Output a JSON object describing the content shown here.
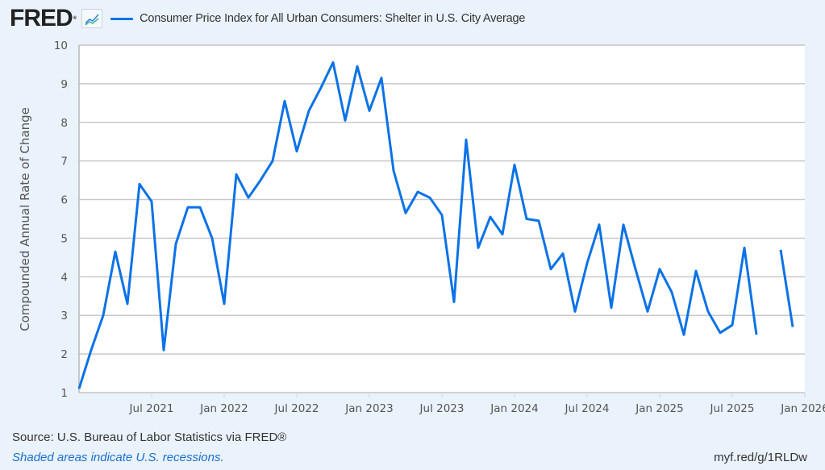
{
  "header": {
    "logo_text": "FRED",
    "logo_mark": "®",
    "graph_icon": "line-chart-icon",
    "legend_label": "Consumer Price Index for All Urban Consumers: Shelter in U.S. City Average",
    "legend_color": "#0b72e7"
  },
  "footer": {
    "source": "Source: U.S. Bureau of Labor Statistics via FRED®",
    "recession_note": "Shaded areas indicate U.S. recessions.",
    "short_link": "myf.red/g/1RLDw"
  },
  "chart_data": {
    "type": "line",
    "title": "Consumer Price Index for All Urban Consumers: Shelter in U.S. City Average",
    "xlabel": "",
    "ylabel": "Compounded Annual Rate of Change",
    "ylim": [
      1,
      10
    ],
    "yticks": [
      "1",
      "2",
      "3",
      "4",
      "5",
      "6",
      "7",
      "8",
      "9",
      "10"
    ],
    "xlim": [
      "2021-01",
      "2026-01"
    ],
    "xticks": [
      {
        "label": "Jul 2021",
        "month": "2021-07"
      },
      {
        "label": "Jan 2022",
        "month": "2022-01"
      },
      {
        "label": "Jul 2022",
        "month": "2022-07"
      },
      {
        "label": "Jan 2023",
        "month": "2023-01"
      },
      {
        "label": "Jul 2023",
        "month": "2023-07"
      },
      {
        "label": "Jan 2024",
        "month": "2024-01"
      },
      {
        "label": "Jul 2024",
        "month": "2024-07"
      },
      {
        "label": "Jan 2025",
        "month": "2025-01"
      },
      {
        "label": "Jul 2025",
        "month": "2025-07"
      },
      {
        "label": "Jan 2026",
        "month": "2026-01"
      }
    ],
    "grid": true,
    "legend_position": "top-left",
    "series": [
      {
        "name": "Consumer Price Index for All Urban Consumers: Shelter in U.S. City Average",
        "color": "#0b72e7",
        "x": [
          "2021-01",
          "2021-02",
          "2021-03",
          "2021-04",
          "2021-05",
          "2021-06",
          "2021-07",
          "2021-08",
          "2021-09",
          "2021-10",
          "2021-11",
          "2021-12",
          "2022-01",
          "2022-02",
          "2022-03",
          "2022-04",
          "2022-05",
          "2022-06",
          "2022-07",
          "2022-08",
          "2022-09",
          "2022-10",
          "2022-11",
          "2022-12",
          "2023-01",
          "2023-02",
          "2023-03",
          "2023-04",
          "2023-05",
          "2023-06",
          "2023-07",
          "2023-08",
          "2023-09",
          "2023-10",
          "2023-11",
          "2023-12",
          "2024-01",
          "2024-02",
          "2024-03",
          "2024-04",
          "2024-05",
          "2024-06",
          "2024-07",
          "2024-08",
          "2024-09",
          "2024-10",
          "2024-11",
          "2024-12",
          "2025-01",
          "2025-02",
          "2025-03",
          "2025-04",
          "2025-05",
          "2025-06",
          "2025-07",
          "2025-08",
          "2025-09",
          "2025-10",
          "2025-11",
          "2025-12"
        ],
        "values": [
          1.1,
          2.1,
          3.0,
          4.65,
          3.3,
          6.4,
          5.95,
          2.1,
          4.85,
          5.8,
          5.8,
          5.0,
          3.3,
          6.65,
          6.05,
          6.5,
          7.0,
          8.55,
          7.25,
          8.3,
          8.9,
          9.55,
          8.05,
          9.45,
          8.3,
          9.15,
          6.75,
          5.65,
          6.2,
          6.05,
          5.6,
          3.35,
          7.55,
          4.75,
          5.55,
          5.1,
          6.9,
          5.5,
          5.45,
          4.2,
          4.6,
          3.1,
          4.35,
          5.35,
          3.2,
          5.35,
          4.2,
          3.1,
          4.2,
          3.6,
          2.5,
          4.15,
          3.1,
          2.55,
          2.75,
          4.75,
          2.5,
          null,
          4.7,
          2.7
        ]
      }
    ]
  }
}
